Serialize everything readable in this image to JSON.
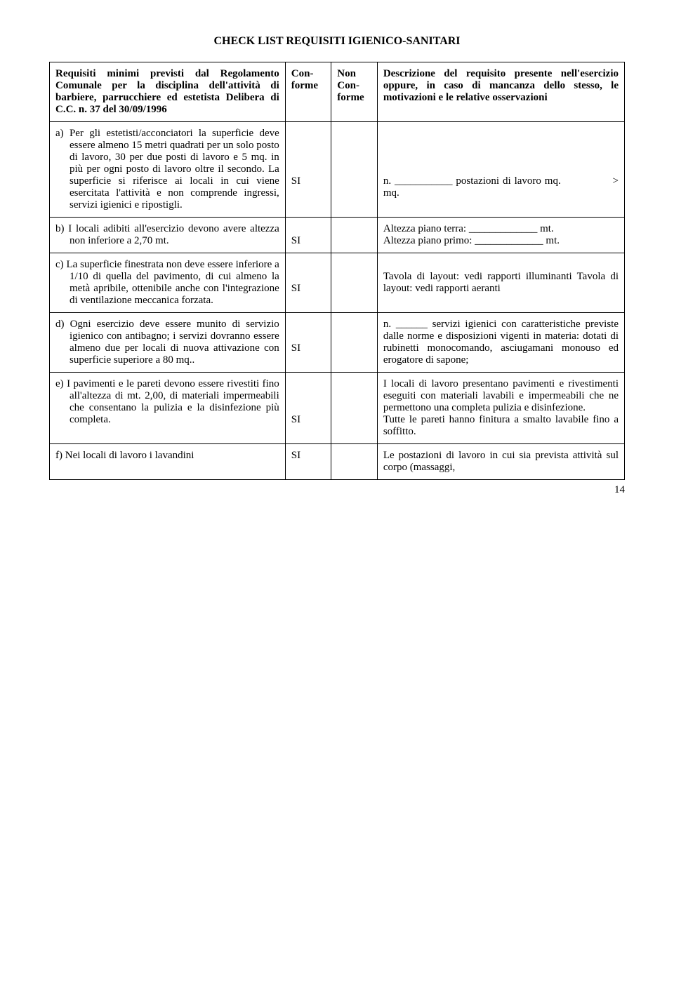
{
  "title": "CHECK LIST REQUISITI IGIENICO-SANITARI",
  "header": {
    "col1": "Requisiti minimi previsti dal Regolamento Comunale per la disciplina dell'attività di barbiere, parrucchiere ed estetista Delibera di C.C. n. 37 del 30/09/1996",
    "col2": "Con-forme",
    "col3": "Non Con-forme",
    "col4": "Descrizione del requisito  presente nell'esercizio oppure, in caso di mancanza dello stesso,  le motivazioni e le relative osservazioni"
  },
  "rows": [
    {
      "label": "a)",
      "req": "Per gli estetisti/acconciatori la superficie deve essere almeno 15 metri quadrati  per un  solo posto di lavoro, 30 per due posti di lavoro e  5 mq. in più per ogni posto di lavoro oltre il  secondo. La superficie si riferisce ai  locali in cui viene esercitata l'attività e non comprende ingressi, servizi igienici e ripostigli.",
      "conforme": "SI",
      "desc": "n. ___________ postazioni di lavoro mq.               > mq."
    },
    {
      "label": "b)",
      "req": "I locali adibiti all'esercizio devono avere altezza non inferiore a 2,70 mt.",
      "conforme": "SI",
      "desc": "Altezza piano terra: _____________ mt.\nAltezza piano primo: _____________ mt."
    },
    {
      "label": "c)",
      "req": "La superficie finestrata non deve essere inferiore a 1/10 di quella del pavimento, di cui almeno la metà apribile, ottenibile anche con l'integrazione di ventilazione meccanica forzata.",
      "conforme": "SI",
      "desc": "Tavola di layout: vedi rapporti illuminanti Tavola di layout: vedi rapporti aeranti"
    },
    {
      "label": "d)",
      "req": "Ogni esercizio deve essere munito di servizio igienico con antibagno; i servizi dovranno essere almeno due per locali di nuova attivazione con superficie superiore a 80 mq..",
      "conforme": "SI",
      "desc": "n. ______ servizi igienici con caratteristiche previste dalle norme e disposizioni vigenti in materia: dotati di rubinetti monocomando, asciugamani monouso ed erogatore di sapone;"
    },
    {
      "label": "e)",
      "req": "I  pavimenti e le pareti devono essere rivestiti fino all'altezza di mt. 2,00, di materiali impermeabili che consentano la pulizia e la disinfezione più completa.",
      "conforme": "SI",
      "desc": "I locali di lavoro presentano pavimenti e rivestimenti eseguiti con materiali lavabili e impermeabili che ne permettono una completa pulizia e disinfezione.\nTutte le pareti hanno finitura a smalto lavabile fino a soffitto."
    },
    {
      "label": "f)",
      "req": "Nei locali di lavoro i lavandini",
      "conforme": "SI",
      "desc": "Le postazioni di lavoro in cui sia prevista attività sul corpo (massaggi,"
    }
  ],
  "pagenum": "14"
}
